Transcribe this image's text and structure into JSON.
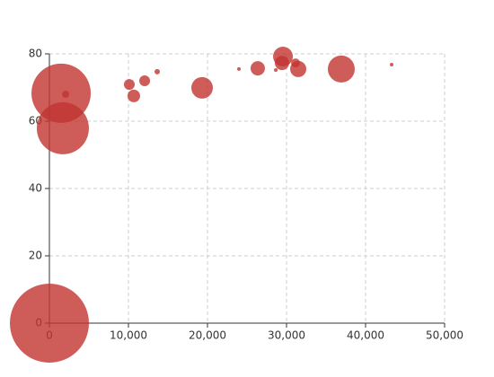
{
  "chart_data": {
    "type": "scatter",
    "color": "#c23531",
    "grid": true,
    "x": [
      0,
      1480,
      1700,
      2050,
      10110,
      10680,
      12050,
      13640,
      19320,
      23980,
      26360,
      28640,
      29550,
      29430,
      31140,
      31480,
      36930,
      43300
    ],
    "values": [
      0,
      68.3,
      57.9,
      68,
      70.9,
      67.5,
      72,
      74.7,
      69.9,
      75.5,
      75.7,
      75.2,
      79.2,
      77.3,
      77.3,
      75.5,
      75.5,
      76.8
    ],
    "sizes": [
      1936,
      1089,
      841,
      16,
      36,
      49,
      36,
      9,
      144,
      4,
      64,
      4,
      121,
      64,
      25,
      81,
      225,
      4
    ],
    "xlim": [
      0,
      50000
    ],
    "xticks": [
      0,
      {
        "value": 10000,
        "label": "10,000"
      },
      {
        "value": 20000,
        "label": "20,000"
      },
      {
        "value": 30000,
        "label": "30,000"
      },
      {
        "value": 40000,
        "label": "40,000"
      },
      {
        "value": 50000,
        "label": "50,000"
      }
    ],
    "ylim": [
      0,
      80
    ],
    "yticks": [
      0,
      20,
      40,
      60,
      80
    ]
  }
}
